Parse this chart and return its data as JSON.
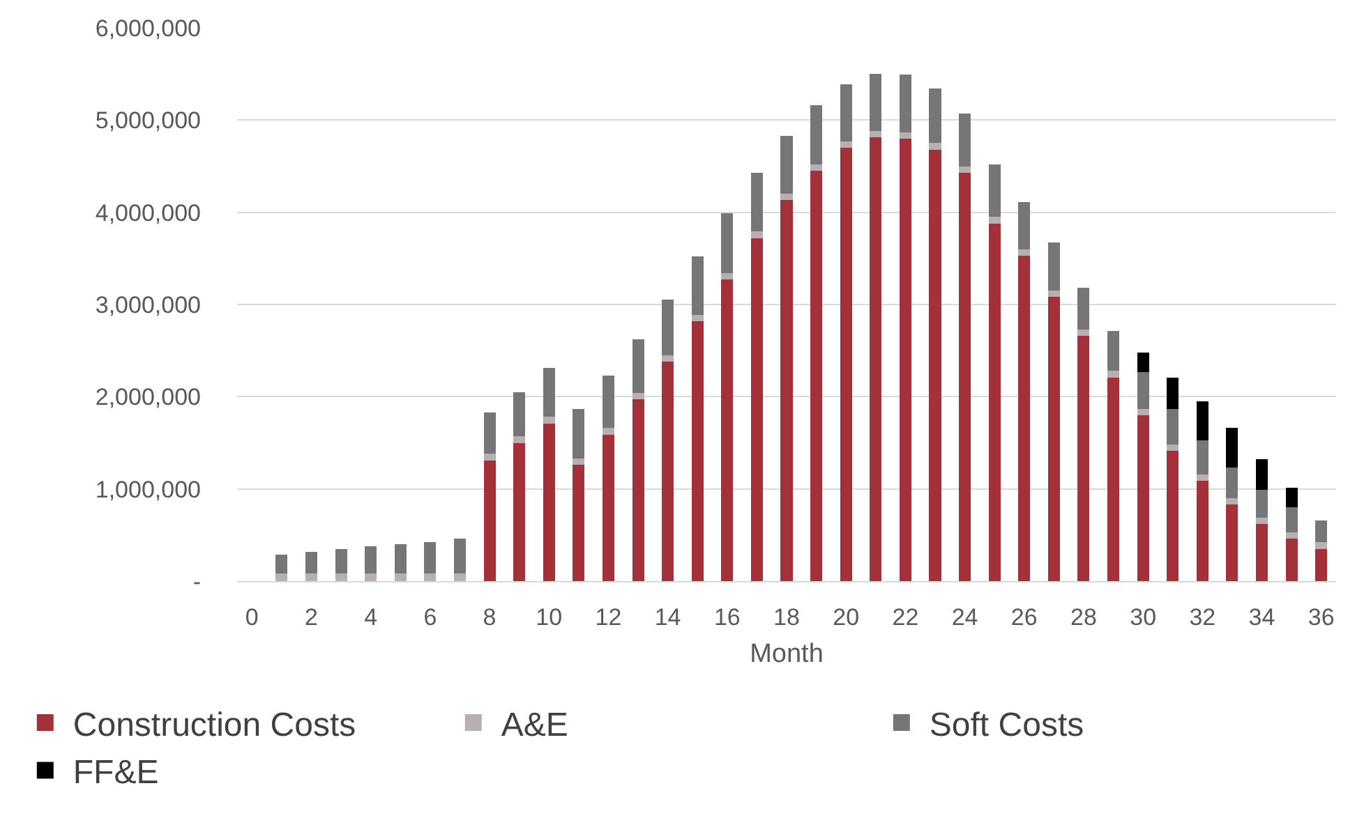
{
  "chart_data": {
    "type": "bar",
    "stacked": true,
    "xlabel": "Month",
    "x": [
      1,
      2,
      3,
      4,
      5,
      6,
      7,
      8,
      9,
      10,
      11,
      12,
      13,
      14,
      15,
      16,
      17,
      18,
      19,
      20,
      21,
      22,
      23,
      24,
      25,
      26,
      27,
      28,
      29,
      30,
      31,
      32,
      33,
      34,
      35,
      36
    ],
    "series": [
      {
        "name": "Construction Costs",
        "color": "#a4313a",
        "values": [
          0,
          0,
          0,
          0,
          0,
          0,
          0,
          1310000,
          1500000,
          1710000,
          1260000,
          1590000,
          1970000,
          2380000,
          2820000,
          3270000,
          3720000,
          4130000,
          4450000,
          4700000,
          4810000,
          4800000,
          4680000,
          4430000,
          3880000,
          3530000,
          3080000,
          2660000,
          2210000,
          1800000,
          1410000,
          1090000,
          830000,
          620000,
          460000,
          350000
        ]
      },
      {
        "name": "A&E",
        "color": "#b8b0b0",
        "values": [
          80000,
          80000,
          80000,
          80000,
          80000,
          80000,
          80000,
          70000,
          70000,
          70000,
          70000,
          70000,
          70000,
          70000,
          70000,
          70000,
          70000,
          70000,
          70000,
          70000,
          70000,
          70000,
          70000,
          70000,
          70000,
          70000,
          70000,
          70000,
          70000,
          70000,
          70000,
          70000,
          70000,
          70000,
          70000,
          70000
        ]
      },
      {
        "name": "Soft Costs",
        "color": "#767676",
        "values": [
          210000,
          240000,
          270000,
          300000,
          320000,
          340000,
          380000,
          450000,
          480000,
          530000,
          540000,
          570000,
          580000,
          600000,
          630000,
          650000,
          640000,
          630000,
          640000,
          620000,
          620000,
          620000,
          590000,
          570000,
          570000,
          510000,
          520000,
          450000,
          430000,
          400000,
          390000,
          370000,
          330000,
          300000,
          270000,
          240000
        ]
      },
      {
        "name": "FF&E",
        "color": "#000000",
        "values": [
          0,
          0,
          0,
          0,
          0,
          0,
          0,
          0,
          0,
          0,
          0,
          0,
          0,
          0,
          0,
          0,
          0,
          0,
          0,
          0,
          0,
          0,
          0,
          0,
          0,
          0,
          0,
          0,
          0,
          210000,
          340000,
          420000,
          430000,
          330000,
          210000,
          0
        ]
      }
    ],
    "xlim": [
      -0.5,
      36.5
    ],
    "xticks": [
      0,
      2,
      4,
      6,
      8,
      10,
      12,
      14,
      16,
      18,
      20,
      22,
      24,
      26,
      28,
      30,
      32,
      34,
      36
    ],
    "ylim": [
      0,
      6000000
    ],
    "yticks": [
      {
        "value": 0,
        "label": "-"
      },
      {
        "value": 1000000,
        "label": "1,000,000"
      },
      {
        "value": 2000000,
        "label": "2,000,000"
      },
      {
        "value": 3000000,
        "label": "3,000,000"
      },
      {
        "value": 4000000,
        "label": "4,000,000"
      },
      {
        "value": 5000000,
        "label": "5,000,000"
      },
      {
        "value": 6000000,
        "label": "6,000,000"
      }
    ],
    "grid": "y",
    "legend": "bottom"
  }
}
